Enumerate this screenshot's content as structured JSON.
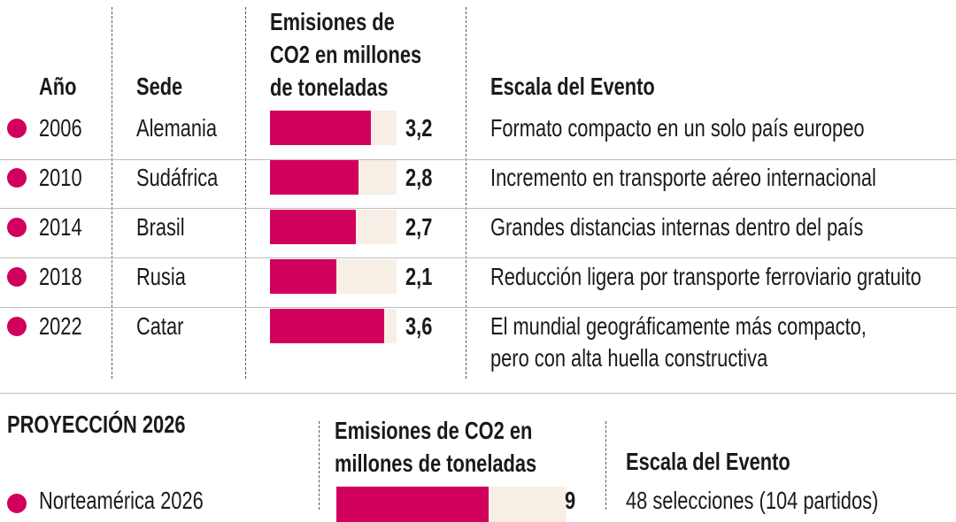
{
  "colors": {
    "accent": "#d1005d",
    "track": "#f7efe6",
    "text": "#1a1a1a"
  },
  "headers": {
    "year": "Año",
    "venue": "Sede",
    "emissions_lines": [
      "Emisiones de",
      "CO2 en millones",
      "de toneladas"
    ],
    "scale": "Escala del Evento"
  },
  "chart_data": {
    "type": "bar",
    "categories": [
      "2006",
      "2010",
      "2014",
      "2018",
      "2022"
    ],
    "values": [
      3.2,
      2.8,
      2.7,
      2.1,
      3.6
    ],
    "value_labels": [
      "3,2",
      "2,8",
      "2,7",
      "2,1",
      "3,6"
    ],
    "xlim": [
      0,
      4.0
    ]
  },
  "rows": [
    {
      "year": "2006",
      "venue": "Alemania",
      "value_label": "3,2",
      "scale_lines": [
        "Formato compacto en un solo país europeo"
      ]
    },
    {
      "year": "2010",
      "venue": "Sudáfrica",
      "value_label": "2,8",
      "scale_lines": [
        "Incremento en transporte aéreo internacional"
      ]
    },
    {
      "year": "2014",
      "venue": "Brasil",
      "value_label": "2,7",
      "scale_lines": [
        "Grandes distancias internas dentro del país"
      ]
    },
    {
      "year": "2018",
      "venue": "Rusia",
      "value_label": "2,1",
      "scale_lines": [
        "Reducción ligera por transporte ferroviario gratuito"
      ]
    },
    {
      "year": "2022",
      "venue": "Catar",
      "value_label": "3,6",
      "scale_lines": [
        "El mundial geográficamente más compacto,",
        "pero con alta huella constructiva"
      ]
    }
  ],
  "projection": {
    "title": "PROYECCIÓN 2026",
    "emissions_lines": [
      "Emisiones de CO2 en",
      "millones de toneladas"
    ],
    "scale": "Escala del Evento",
    "row_label": "Norteamérica 2026",
    "value_label": "9",
    "scale_text": "48 selecciones (104 partidos)"
  }
}
